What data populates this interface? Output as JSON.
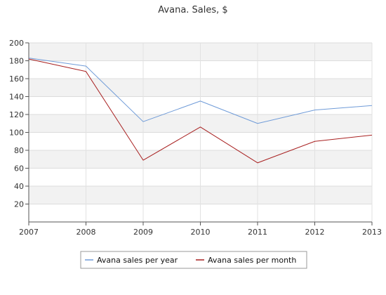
{
  "chart_data": {
    "type": "line",
    "title": "Avana. Sales, $",
    "xlabel": "",
    "ylabel": "",
    "x": [
      "2007",
      "2008",
      "2009",
      "2010",
      "2011",
      "2012",
      "2013"
    ],
    "series": [
      {
        "name": "Avana sales per year",
        "color": "#6f9bd8",
        "values": [
          183,
          174,
          112,
          135,
          110,
          125,
          130
        ]
      },
      {
        "name": "Avana sales per month",
        "color": "#a82020",
        "values": [
          182,
          168,
          69,
          106,
          66,
          90,
          97
        ]
      }
    ],
    "ylim": [
      0,
      200
    ],
    "yticks": [
      "20",
      "40",
      "60",
      "80",
      "100",
      "120",
      "140",
      "160",
      "180",
      "200"
    ],
    "grid": true,
    "legend_position": "bottom-center"
  }
}
